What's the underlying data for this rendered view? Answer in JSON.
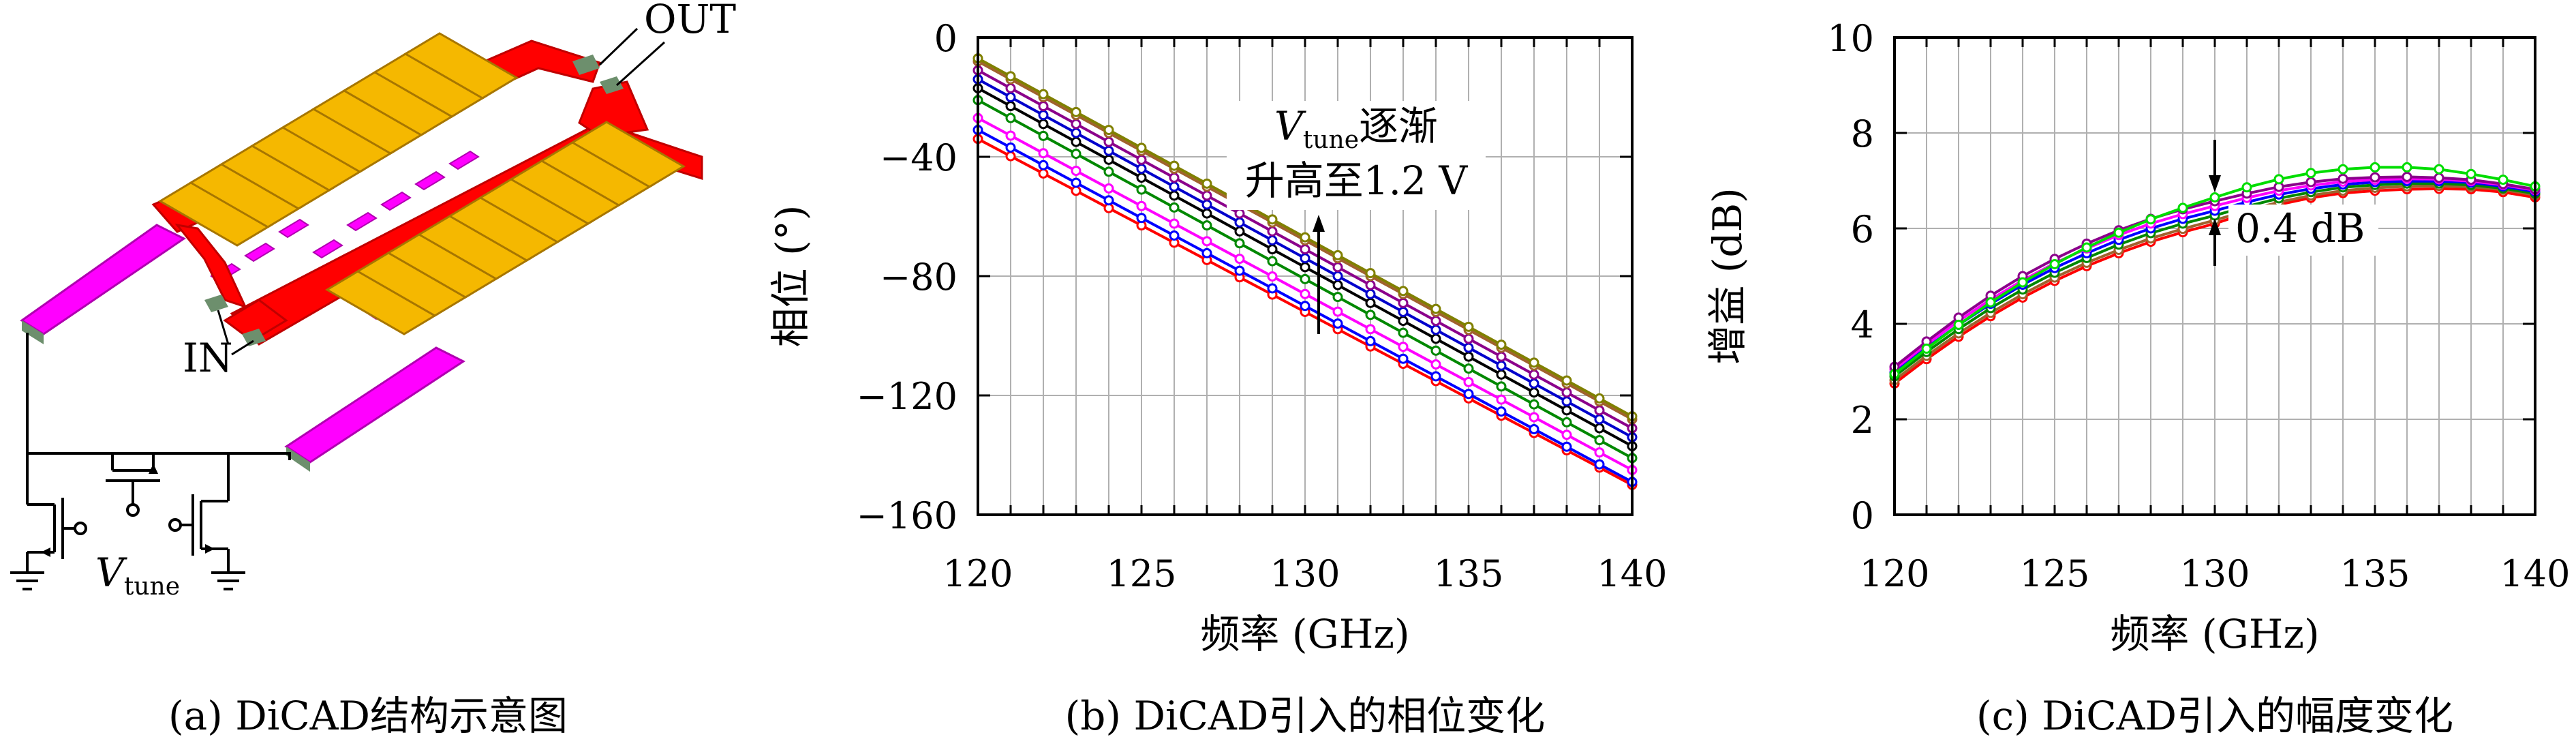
{
  "panel_a": {
    "label_out": "OUT",
    "label_in": "IN",
    "vtune_main": "V",
    "vtune_sub": "tune",
    "caption": "(a) DiCAD结构示意图"
  },
  "panel_b": {
    "caption": "(b) DiCAD引入的相位变化",
    "annotation_line1_main": "V",
    "annotation_line1_sub": "tune",
    "annotation_line1_rest": "逐渐",
    "annotation_line2": "升高至1.2 V"
  },
  "panel_c": {
    "caption": "(c) DiCAD引入的幅度变化",
    "annotation": "0.4 dB"
  },
  "colors": {
    "trace": "#ff0000",
    "stripline": "#ff00ff",
    "fingers": "#f5b800",
    "grid": "#b0b0b0"
  },
  "chart_data": [
    {
      "type": "line",
      "xlabel": "频率 (GHz)",
      "ylabel": "相位 (°)",
      "xlim": [
        120,
        140
      ],
      "ylim": [
        -160,
        0
      ],
      "xticks": [
        "120",
        "125",
        "130",
        "135",
        "140"
      ],
      "yticks": [
        "0",
        "−40",
        "−80",
        "−120",
        "−160"
      ],
      "grid": true,
      "x": [
        120,
        121,
        122,
        123,
        124,
        125,
        126,
        127,
        128,
        129,
        130,
        131,
        132,
        133,
        134,
        135,
        136,
        137,
        138,
        139,
        140
      ],
      "series": [
        {
          "color": "#ff0000",
          "values": [
            -34,
            -39.8,
            -45.6,
            -51.4,
            -57.2,
            -63,
            -68.8,
            -74.6,
            -80.4,
            -86.2,
            -92,
            -97.8,
            -103.6,
            -109.4,
            -115.2,
            -121,
            -126.8,
            -132.6,
            -138.4,
            -144.2,
            -150
          ]
        },
        {
          "color": "#0000ff",
          "values": [
            -31,
            -36.9,
            -42.8,
            -48.7,
            -54.6,
            -60.5,
            -66.4,
            -72.3,
            -78.2,
            -84.1,
            -90,
            -95.9,
            -101.8,
            -107.7,
            -113.6,
            -119.5,
            -125.4,
            -131.3,
            -137.2,
            -143.1,
            -149
          ]
        },
        {
          "color": "#ff00ff",
          "values": [
            -27,
            -32.9,
            -38.8,
            -44.7,
            -50.6,
            -56.5,
            -62.4,
            -68.3,
            -74.2,
            -80.1,
            -86,
            -91.9,
            -97.8,
            -103.7,
            -109.6,
            -115.5,
            -121.4,
            -127.3,
            -133.2,
            -139.1,
            -145
          ]
        },
        {
          "color": "#008800",
          "values": [
            -21,
            -27,
            -33,
            -39,
            -45,
            -51,
            -57,
            -63,
            -69,
            -75,
            -81,
            -87,
            -93,
            -99,
            -105,
            -111,
            -117,
            -123,
            -129,
            -135,
            -141
          ]
        },
        {
          "color": "#000000",
          "values": [
            -17,
            -23,
            -29,
            -35,
            -41,
            -47,
            -53,
            -59,
            -65,
            -71,
            -77,
            -83,
            -89,
            -95,
            -101,
            -107,
            -113,
            -119,
            -125,
            -131,
            -137
          ]
        },
        {
          "color": "#0000cc",
          "values": [
            -14,
            -20,
            -26,
            -32,
            -38,
            -44,
            -50,
            -56,
            -62,
            -68,
            -74,
            -80,
            -86,
            -92,
            -98,
            -104,
            -110,
            -116,
            -122,
            -128,
            -134
          ]
        },
        {
          "color": "#8b008b",
          "values": [
            -11,
            -17,
            -23,
            -29,
            -35,
            -41,
            -47,
            -53,
            -59,
            -65,
            -71,
            -77,
            -83,
            -89,
            -95,
            -101,
            -107,
            -113,
            -119,
            -125,
            -131
          ]
        },
        {
          "color": "#a0622d",
          "values": [
            -8,
            -14,
            -20,
            -26,
            -32,
            -38,
            -44,
            -50,
            -56,
            -62,
            -68,
            -74,
            -80,
            -86,
            -92,
            -98,
            -104,
            -110,
            -116,
            -122,
            -128
          ]
        },
        {
          "color": "#808000",
          "values": [
            -7,
            -13,
            -19,
            -25,
            -31,
            -37,
            -43,
            -49,
            -55,
            -61,
            -67,
            -73,
            -79,
            -85,
            -91,
            -97,
            -103,
            -109,
            -115,
            -121,
            -127
          ]
        }
      ]
    },
    {
      "type": "line",
      "xlabel": "频率 (GHz)",
      "ylabel": "增益 (dB)",
      "xlim": [
        120,
        140
      ],
      "ylim": [
        0,
        10
      ],
      "xticks": [
        "120",
        "125",
        "130",
        "135",
        "140"
      ],
      "yticks": [
        "0",
        "2",
        "4",
        "6",
        "8",
        "10"
      ],
      "grid": true,
      "x": [
        120,
        121,
        122,
        123,
        124,
        125,
        126,
        127,
        128,
        129,
        130,
        131,
        132,
        133,
        134,
        135,
        136,
        137,
        138,
        139,
        140
      ],
      "series": [
        {
          "color": "#ff0000",
          "values": [
            2.75,
            3.26,
            3.73,
            4.16,
            4.55,
            4.9,
            5.21,
            5.48,
            5.72,
            5.92,
            6.1,
            6.32,
            6.5,
            6.64,
            6.74,
            6.79,
            6.82,
            6.83,
            6.82,
            6.76,
            6.65
          ]
        },
        {
          "color": "#a0622d",
          "values": [
            2.82,
            3.33,
            3.8,
            4.23,
            4.62,
            4.97,
            5.28,
            5.55,
            5.79,
            5.99,
            6.17,
            6.37,
            6.55,
            6.69,
            6.79,
            6.85,
            6.88,
            6.89,
            6.87,
            6.81,
            6.7
          ]
        },
        {
          "color": "#008800",
          "values": [
            2.9,
            3.41,
            3.89,
            4.33,
            4.72,
            5.07,
            5.38,
            5.66,
            5.9,
            6.1,
            6.27,
            6.46,
            6.63,
            6.76,
            6.86,
            6.91,
            6.94,
            6.94,
            6.91,
            6.84,
            6.73
          ]
        },
        {
          "color": "#0000ff",
          "values": [
            2.98,
            3.5,
            3.98,
            4.42,
            4.82,
            5.17,
            5.48,
            5.76,
            6,
            6.2,
            6.37,
            6.55,
            6.71,
            6.83,
            6.92,
            6.97,
            6.99,
            6.99,
            6.96,
            6.88,
            6.77
          ]
        },
        {
          "color": "#ff00ff",
          "values": [
            3.05,
            3.57,
            4.06,
            4.51,
            4.91,
            5.27,
            5.58,
            5.86,
            6.1,
            6.3,
            6.47,
            6.64,
            6.79,
            6.9,
            6.98,
            7.02,
            7.04,
            7.03,
            6.99,
            6.91,
            6.8
          ]
        },
        {
          "color": "#8b008b",
          "values": [
            3.1,
            3.63,
            4.13,
            4.59,
            5,
            5.36,
            5.68,
            5.96,
            6.2,
            6.4,
            6.57,
            6.73,
            6.87,
            6.97,
            7.04,
            7.07,
            7.08,
            7.06,
            7.02,
            6.93,
            6.82
          ]
        },
        {
          "color": "#00dd00",
          "values": [
            2.95,
            3.48,
            3.98,
            4.45,
            4.87,
            5.25,
            5.6,
            5.91,
            6.19,
            6.43,
            6.65,
            6.86,
            7.03,
            7.16,
            7.24,
            7.28,
            7.28,
            7.24,
            7.14,
            7.02,
            6.88
          ]
        }
      ]
    }
  ]
}
